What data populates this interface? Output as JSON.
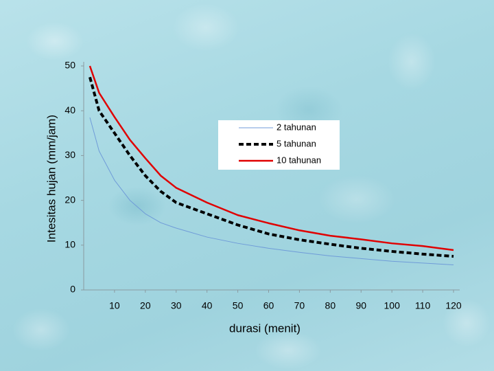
{
  "chart_data": {
    "type": "line",
    "x_label": "durasi (menit)",
    "y_label": "Intesitas hujan (mm/jam)",
    "x": [
      2,
      5,
      10,
      15,
      20,
      25,
      30,
      40,
      50,
      60,
      70,
      80,
      90,
      100,
      110,
      120
    ],
    "series": [
      {
        "name": "2 tahunan",
        "color": "#6f9bd8",
        "values": [
          38.5,
          31,
          24.5,
          20,
          17,
          15,
          13.8,
          11.8,
          10.4,
          9.3,
          8.4,
          7.6,
          7,
          6.4,
          6,
          5.6
        ]
      },
      {
        "name": "5 tahunan",
        "color": "#000000",
        "values": [
          47.5,
          40,
          35,
          30,
          25.5,
          22,
          19.5,
          17,
          14.5,
          12.5,
          11.2,
          10.2,
          9.3,
          8.6,
          8,
          7.5
        ]
      },
      {
        "name": "10 tahunan",
        "color": "#e00000",
        "values": [
          50,
          44,
          38.6,
          33.5,
          29.4,
          25.5,
          22.8,
          19.5,
          16.7,
          14.9,
          13.3,
          12.1,
          11.3,
          10.4,
          9.8,
          8.9
        ]
      }
    ],
    "xlim": [
      0,
      122
    ],
    "ylim": [
      0,
      50
    ],
    "xticks": [
      10,
      20,
      30,
      40,
      50,
      60,
      70,
      80,
      90,
      100,
      110,
      120
    ],
    "yticks": [
      0,
      10,
      20,
      30,
      40,
      50
    ],
    "grid": false
  }
}
